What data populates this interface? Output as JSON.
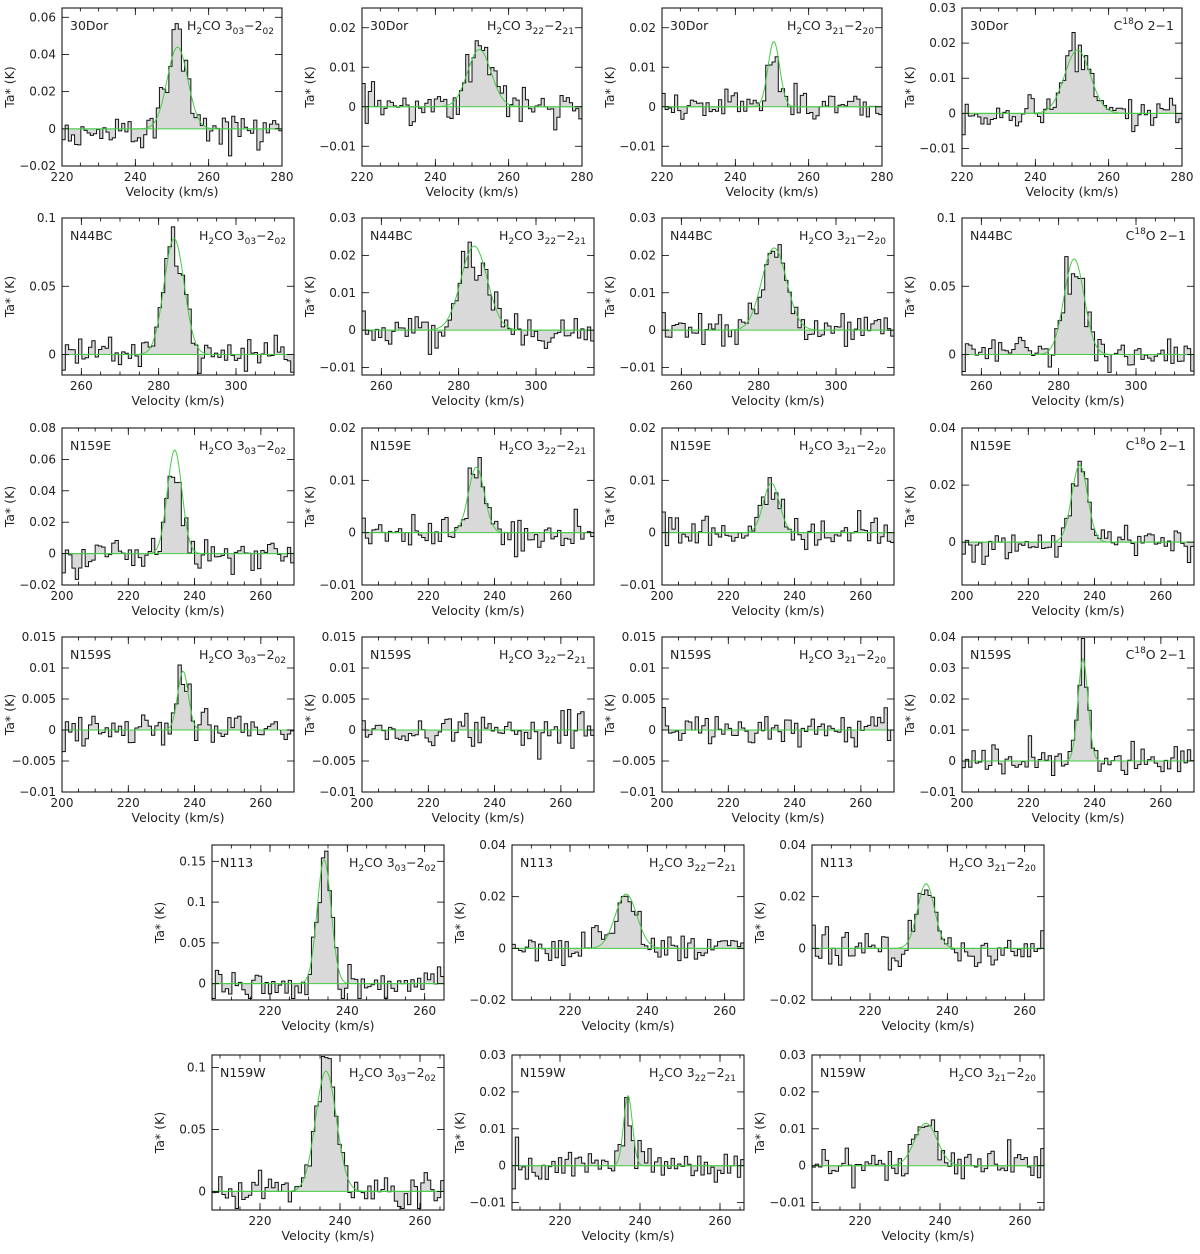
{
  "axis_titles": {
    "x": "Velocity (km/s)",
    "y": "Ta* (K)"
  },
  "lines": {
    "h2co_303": {
      "species": "H",
      "sub1": "2",
      "rest": "CO 3",
      "sub2": "03",
      "dash": "−2",
      "sub3": "02"
    },
    "h2co_322": {
      "species": "H",
      "sub1": "2",
      "rest": "CO 3",
      "sub2": "22",
      "dash": "−2",
      "sub3": "21"
    },
    "h2co_321": {
      "species": "H",
      "sub1": "2",
      "rest": "CO 3",
      "sub2": "21",
      "dash": "−2",
      "sub3": "20"
    },
    "c18o": {
      "pre": "C",
      "sup": "18",
      "post": "O 2−1"
    }
  },
  "colors": {
    "fit": "#44cc44",
    "fill": "#d9d9d9",
    "line": "#111111"
  },
  "chart_data": [
    {
      "type": "line",
      "source": "30Dor",
      "line": "h2co_303",
      "xlim": [
        220,
        280
      ],
      "ylim": [
        -0.02,
        0.065
      ],
      "xticks": [
        220,
        240,
        260,
        280
      ],
      "yticks": [
        -0.02,
        0,
        0.02,
        0.04,
        0.06
      ],
      "xticklabels": [
        "220",
        "240",
        "260",
        "280"
      ],
      "yticklabels": [
        "−0.02",
        "0",
        "0.02",
        "0.04",
        "0.06"
      ],
      "fit": {
        "amp": 0.044,
        "center": 251.5,
        "width": 2.8
      }
    },
    {
      "type": "line",
      "source": "30Dor",
      "line": "h2co_322",
      "xlim": [
        220,
        280
      ],
      "ylim": [
        -0.015,
        0.025
      ],
      "xticks": [
        220,
        240,
        260,
        280
      ],
      "yticks": [
        -0.01,
        0,
        0.01,
        0.02
      ],
      "xticklabels": [
        "220",
        "240",
        "260",
        "280"
      ],
      "yticklabels": [
        "−0.01",
        "0",
        "0.01",
        "0.02"
      ],
      "fit": {
        "amp": 0.0145,
        "center": 252,
        "width": 3.2
      }
    },
    {
      "type": "line",
      "source": "30Dor",
      "line": "h2co_321",
      "xlim": [
        220,
        280
      ],
      "ylim": [
        -0.015,
        0.025
      ],
      "xticks": [
        220,
        240,
        260,
        280
      ],
      "yticks": [
        -0.01,
        0,
        0.01,
        0.02
      ],
      "xticklabels": [
        "220",
        "240",
        "260",
        "280"
      ],
      "yticklabels": [
        "−0.01",
        "0",
        "0.01",
        "0.02"
      ],
      "fit": {
        "amp": 0.0165,
        "center": 250.5,
        "width": 1.6
      }
    },
    {
      "type": "line",
      "source": "30Dor",
      "line": "c18o",
      "xlim": [
        220,
        280
      ],
      "ylim": [
        -0.015,
        0.03
      ],
      "xticks": [
        220,
        240,
        260,
        280
      ],
      "yticks": [
        -0.01,
        0,
        0.01,
        0.02,
        0.03
      ],
      "xticklabels": [
        "220",
        "240",
        "260",
        "280"
      ],
      "yticklabels": [
        "−0.01",
        "0",
        "0.01",
        "0.02",
        "0.03"
      ],
      "fit": {
        "amp": 0.018,
        "center": 251.5,
        "width": 3.5
      }
    },
    {
      "type": "line",
      "source": "N44BC",
      "line": "h2co_303",
      "xlim": [
        255,
        315
      ],
      "ylim": [
        -0.015,
        0.1
      ],
      "xticks": [
        260,
        280,
        300
      ],
      "yticks": [
        0,
        0.05,
        0.1
      ],
      "xticklabels": [
        "260",
        "280",
        "300"
      ],
      "yticklabels": [
        "0",
        "0.05",
        "0.1"
      ],
      "fit": {
        "amp": 0.085,
        "center": 284,
        "width": 2.6
      }
    },
    {
      "type": "line",
      "source": "N44BC",
      "line": "h2co_322",
      "xlim": [
        255,
        315
      ],
      "ylim": [
        -0.012,
        0.03
      ],
      "xticks": [
        260,
        280,
        300
      ],
      "yticks": [
        -0.01,
        0,
        0.01,
        0.02,
        0.03
      ],
      "xticklabels": [
        "260",
        "280",
        "300"
      ],
      "yticklabels": [
        "−0.01",
        "0",
        "0.01",
        "0.02",
        "0.03"
      ],
      "fit": {
        "amp": 0.0225,
        "center": 284,
        "width": 3.4
      }
    },
    {
      "type": "line",
      "source": "N44BC",
      "line": "h2co_321",
      "xlim": [
        255,
        315
      ],
      "ylim": [
        -0.012,
        0.03
      ],
      "xticks": [
        260,
        280,
        300
      ],
      "yticks": [
        -0.01,
        0,
        0.01,
        0.02,
        0.03
      ],
      "xticklabels": [
        "260",
        "280",
        "300"
      ],
      "yticklabels": [
        "−0.01",
        "0",
        "0.01",
        "0.02",
        "0.03"
      ],
      "fit": {
        "amp": 0.022,
        "center": 284,
        "width": 3.2
      }
    },
    {
      "type": "line",
      "source": "N44BC",
      "line": "c18o",
      "xlim": [
        255,
        315
      ],
      "ylim": [
        -0.015,
        0.1
      ],
      "xticks": [
        260,
        280,
        300
      ],
      "yticks": [
        0,
        0.05,
        0.1
      ],
      "xticklabels": [
        "260",
        "280",
        "300"
      ],
      "yticklabels": [
        "0",
        "0.05",
        "0.1"
      ],
      "fit": {
        "amp": 0.07,
        "center": 284,
        "width": 2.6
      }
    },
    {
      "type": "line",
      "source": "N159E",
      "line": "h2co_303",
      "xlim": [
        200,
        270
      ],
      "ylim": [
        -0.02,
        0.08
      ],
      "xticks": [
        200,
        220,
        240,
        260
      ],
      "yticks": [
        -0.02,
        0,
        0.02,
        0.04,
        0.06,
        0.08
      ],
      "xticklabels": [
        "200",
        "220",
        "240",
        "260"
      ],
      "yticklabels": [
        "−0.02",
        "0",
        "0.02",
        "0.04",
        "0.06",
        "0.08"
      ],
      "fit": {
        "amp": 0.066,
        "center": 234,
        "width": 2.2
      }
    },
    {
      "type": "line",
      "source": "N159E",
      "line": "h2co_322",
      "xlim": [
        200,
        270
      ],
      "ylim": [
        -0.01,
        0.02
      ],
      "xticks": [
        200,
        220,
        240,
        260
      ],
      "yticks": [
        -0.01,
        0,
        0.01,
        0.02
      ],
      "xticklabels": [
        "200",
        "220",
        "240",
        "260"
      ],
      "yticklabels": [
        "−0.01",
        "0",
        "0.01",
        "0.02"
      ],
      "fit": {
        "amp": 0.0125,
        "center": 234.5,
        "width": 2.4
      }
    },
    {
      "type": "line",
      "source": "N159E",
      "line": "h2co_321",
      "xlim": [
        200,
        270
      ],
      "ylim": [
        -0.01,
        0.02
      ],
      "xticks": [
        200,
        220,
        240,
        260
      ],
      "yticks": [
        -0.01,
        0,
        0.01,
        0.02
      ],
      "xticklabels": [
        "200",
        "220",
        "240",
        "260"
      ],
      "yticklabels": [
        "−0.01",
        "0",
        "0.01",
        "0.02"
      ],
      "fit": {
        "amp": 0.0095,
        "center": 233,
        "width": 2.4
      }
    },
    {
      "type": "line",
      "source": "N159E",
      "line": "c18o",
      "xlim": [
        200,
        270
      ],
      "ylim": [
        -0.015,
        0.04
      ],
      "xticks": [
        200,
        220,
        240,
        260
      ],
      "yticks": [
        0,
        0.02,
        0.04
      ],
      "xticklabels": [
        "200",
        "220",
        "240",
        "260"
      ],
      "yticklabels": [
        "0",
        "0.02",
        "0.04"
      ],
      "fit": {
        "amp": 0.027,
        "center": 235.5,
        "width": 2.4
      }
    },
    {
      "type": "line",
      "source": "N159S",
      "line": "h2co_303",
      "xlim": [
        200,
        270
      ],
      "ylim": [
        -0.01,
        0.015
      ],
      "xticks": [
        200,
        220,
        240,
        260
      ],
      "yticks": [
        -0.01,
        -0.005,
        0,
        0.005,
        0.01,
        0.015
      ],
      "xticklabels": [
        "200",
        "220",
        "240",
        "260"
      ],
      "yticklabels": [
        "−0.01",
        "−0.005",
        "0",
        "0.005",
        "0.01",
        "0.015"
      ],
      "fit": {
        "amp": 0.0095,
        "center": 236.5,
        "width": 1.6
      }
    },
    {
      "type": "line",
      "source": "N159S",
      "line": "h2co_322",
      "xlim": [
        200,
        270
      ],
      "ylim": [
        -0.01,
        0.015
      ],
      "xticks": [
        200,
        220,
        240,
        260
      ],
      "yticks": [
        -0.01,
        -0.005,
        0,
        0.005,
        0.01,
        0.015
      ],
      "xticklabels": [
        "200",
        "220",
        "240",
        "260"
      ],
      "yticklabels": [
        "−0.01",
        "−0.005",
        "0",
        "0.005",
        "0.01",
        "0.015"
      ]
    },
    {
      "type": "line",
      "source": "N159S",
      "line": "h2co_321",
      "xlim": [
        200,
        270
      ],
      "ylim": [
        -0.01,
        0.015
      ],
      "xticks": [
        200,
        220,
        240,
        260
      ],
      "yticks": [
        -0.01,
        -0.005,
        0,
        0.005,
        0.01,
        0.015
      ],
      "xticklabels": [
        "200",
        "220",
        "240",
        "260"
      ],
      "yticklabels": [
        "−0.01",
        "−0.005",
        "0",
        "0.005",
        "0.01",
        "0.015"
      ]
    },
    {
      "type": "line",
      "source": "N159S",
      "line": "c18o",
      "xlim": [
        200,
        270
      ],
      "ylim": [
        -0.01,
        0.04
      ],
      "xticks": [
        200,
        220,
        240,
        260
      ],
      "yticks": [
        -0.01,
        0,
        0.01,
        0.02,
        0.03,
        0.04
      ],
      "xticklabels": [
        "200",
        "220",
        "240",
        "260"
      ],
      "yticklabels": [
        "−0.01",
        "0",
        "0.01",
        "0.02",
        "0.03",
        "0.04"
      ],
      "fit": {
        "amp": 0.033,
        "center": 236.5,
        "width": 1.5
      }
    },
    {
      "type": "line",
      "source": "N113",
      "line": "h2co_303",
      "xlim": [
        205,
        265
      ],
      "ylim": [
        -0.02,
        0.17
      ],
      "xticks": [
        220,
        240,
        260
      ],
      "yticks": [
        0,
        0.05,
        0.1,
        0.15
      ],
      "xticklabels": [
        "220",
        "240",
        "260"
      ],
      "yticklabels": [
        "0",
        "0.05",
        "0.1",
        "0.15"
      ],
      "fit": {
        "amp": 0.152,
        "center": 234,
        "width": 1.8
      }
    },
    {
      "type": "line",
      "source": "N113",
      "line": "h2co_322",
      "xlim": [
        205,
        265
      ],
      "ylim": [
        -0.02,
        0.04
      ],
      "xticks": [
        220,
        240,
        260
      ],
      "yticks": [
        -0.02,
        0,
        0.02,
        0.04
      ],
      "xticklabels": [
        "220",
        "240",
        "260"
      ],
      "yticklabels": [
        "−0.02",
        "0",
        "0.02",
        "0.04"
      ],
      "fit": {
        "amp": 0.021,
        "center": 234.5,
        "width": 2.8
      }
    },
    {
      "type": "line",
      "source": "N113",
      "line": "h2co_321",
      "xlim": [
        205,
        265
      ],
      "ylim": [
        -0.02,
        0.04
      ],
      "xticks": [
        220,
        240,
        260
      ],
      "yticks": [
        -0.02,
        0,
        0.02,
        0.04
      ],
      "xticklabels": [
        "220",
        "240",
        "260"
      ],
      "yticklabels": [
        "−0.02",
        "0",
        "0.02",
        "0.04"
      ],
      "fit": {
        "amp": 0.025,
        "center": 234.5,
        "width": 2.2
      }
    },
    {
      "type": "line",
      "source": "N159W",
      "line": "h2co_303",
      "xlim": [
        208,
        266
      ],
      "ylim": [
        -0.015,
        0.11
      ],
      "xticks": [
        220,
        240,
        260
      ],
      "yticks": [
        0,
        0.05,
        0.1
      ],
      "xticklabels": [
        "220",
        "240",
        "260"
      ],
      "yticklabels": [
        "0",
        "0.05",
        "0.1"
      ],
      "fit": {
        "amp": 0.097,
        "center": 236.5,
        "width": 2.6
      }
    },
    {
      "type": "line",
      "source": "N159W",
      "line": "h2co_322",
      "xlim": [
        208,
        266
      ],
      "ylim": [
        -0.012,
        0.03
      ],
      "xticks": [
        220,
        240,
        260
      ],
      "yticks": [
        -0.01,
        0,
        0.01,
        0.02,
        0.03
      ],
      "xticklabels": [
        "220",
        "240",
        "260"
      ],
      "yticklabels": [
        "−0.01",
        "0",
        "0.01",
        "0.02",
        "0.03"
      ],
      "fit": {
        "amp": 0.019,
        "center": 237,
        "width": 1.1
      }
    },
    {
      "type": "line",
      "source": "N159W",
      "line": "h2co_321",
      "xlim": [
        208,
        266
      ],
      "ylim": [
        -0.012,
        0.03
      ],
      "xticks": [
        220,
        240,
        260
      ],
      "yticks": [
        -0.01,
        0,
        0.01,
        0.02,
        0.03
      ],
      "xticklabels": [
        "220",
        "240",
        "260"
      ],
      "yticklabels": [
        "−0.01",
        "0",
        "0.01",
        "0.02",
        "0.03"
      ],
      "fit": {
        "amp": 0.0115,
        "center": 236.5,
        "width": 2.8
      }
    }
  ]
}
